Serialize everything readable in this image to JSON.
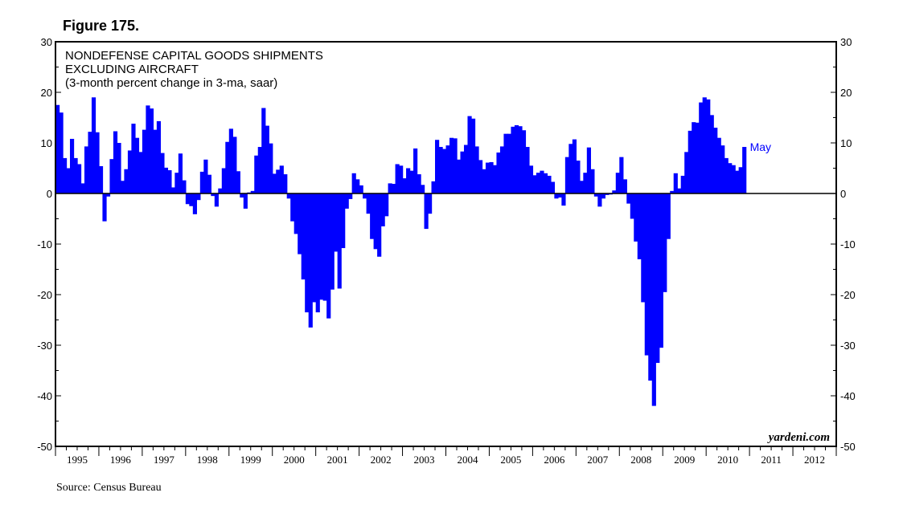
{
  "figure_label": "Figure 175.",
  "source": "Source: Census Bureau",
  "watermark": "yardeni.com",
  "chart_data": {
    "type": "bar",
    "title_lines": [
      "NONDEFENSE CAPITAL GOODS SHIPMENTS",
      "EXCLUDING AIRCRAFT",
      "(3-month percent change in 3-ma, saar)"
    ],
    "ylim": [
      -50,
      30
    ],
    "yticks": [
      "30",
      "20",
      "10",
      "0",
      "-10",
      "-20",
      "-30",
      "-40",
      "-50"
    ],
    "x_labels": [
      "1995",
      "1996",
      "1997",
      "1998",
      "1999",
      "2000",
      "2001",
      "2002",
      "2003",
      "2004",
      "2005",
      "2006",
      "2007",
      "2008",
      "2009",
      "2010",
      "2011",
      "2012"
    ],
    "x_start": "1995-01",
    "annotation": "May",
    "bar_color": "#0000ff",
    "values": [
      17.5,
      16,
      7,
      5,
      10.8,
      7,
      5.8,
      2,
      9.3,
      12.2,
      19,
      12.1,
      5.4,
      -5.5,
      -0.6,
      6.8,
      12.3,
      10,
      2.5,
      4.8,
      8.5,
      13.8,
      11,
      8.2,
      12.6,
      17.4,
      16.8,
      12.6,
      14.3,
      8,
      5.1,
      4.6,
      1.2,
      4.1,
      7.9,
      2.6,
      -2.1,
      -2.5,
      -4.1,
      -1.3,
      4.3,
      6.7,
      3.7,
      -0.5,
      -2.6,
      1,
      5,
      10.2,
      12.8,
      11.2,
      4.4,
      -0.8,
      -3,
      0.2,
      0.5,
      7.5,
      9.2,
      16.9,
      13.4,
      9.9,
      3.9,
      4.7,
      5.5,
      3.8,
      -1,
      -5.5,
      -8,
      -12,
      -17,
      -23.5,
      -26.5,
      -21.5,
      -23.5,
      -21,
      -21.2,
      -24.7,
      -19,
      -11.5,
      -18.8,
      -10.8,
      -3,
      -1.1,
      4,
      2.8,
      1.6,
      -1,
      -4,
      -9,
      -11,
      -12.5,
      -6.5,
      -4.5,
      2,
      1.9,
      5.8,
      5.5,
      3,
      5,
      4.5,
      8.9,
      3.8,
      1.7,
      -7,
      -4,
      2.4,
      10.6,
      9.2,
      8.8,
      9.5,
      11,
      10.9,
      6.7,
      8.3,
      9.6,
      15.3,
      14.8,
      9.3,
      6.6,
      4.8,
      6.1,
      6.2,
      5.6,
      8.1,
      9.3,
      11.8,
      11.8,
      13.2,
      13.5,
      13.3,
      12.5,
      9.2,
      5.5,
      3.6,
      4.1,
      4.5,
      4,
      3.5,
      2.3,
      -1,
      -0.8,
      -2.4,
      7.2,
      9.8,
      10.7,
      6.5,
      2.5,
      4.1,
      9.1,
      4.8,
      -0.6,
      -2.6,
      -1,
      -0.3,
      -0.2,
      0.6,
      4.1,
      7.2,
      2.8,
      -2,
      -5,
      -9.5,
      -13,
      -21.5,
      -32,
      -37,
      -42,
      -33.5,
      -30.5,
      -19.5,
      -9,
      0.5,
      4,
      1,
      3.5,
      8.2,
      12.4,
      14.1,
      14,
      18,
      19,
      18.6,
      15.5,
      13,
      11,
      9.5,
      7,
      6,
      5.6,
      4.5,
      5.2,
      9.2
    ]
  }
}
